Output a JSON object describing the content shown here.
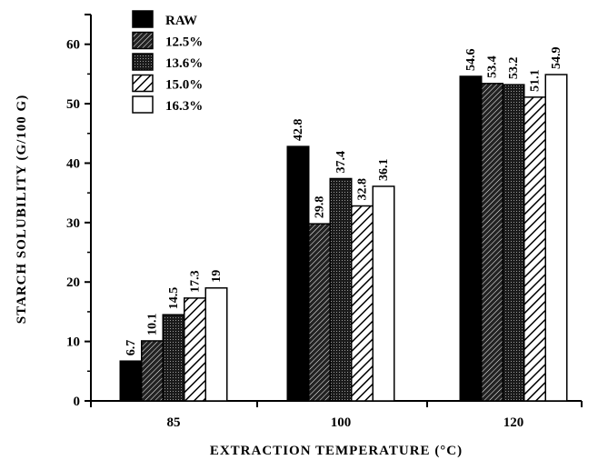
{
  "chart_data": {
    "type": "bar",
    "title": "",
    "xlabel": "EXTRACTION TEMPERATURE (°C)",
    "ylabel": "STARCH SOLUBILITY (G/100 G)",
    "categories": [
      "85",
      "100",
      "120"
    ],
    "ylim": [
      0,
      65
    ],
    "yticks": [
      0,
      10,
      20,
      30,
      40,
      50,
      60
    ],
    "grid": false,
    "legend_position": "top-left",
    "series": [
      {
        "name": "RAW",
        "pattern": "solid",
        "values": [
          6.7,
          42.8,
          54.6
        ],
        "labels": [
          "6.7",
          "42.8",
          "54.6"
        ]
      },
      {
        "name": "12.5%",
        "pattern": "dense-hatch",
        "values": [
          10.1,
          29.8,
          53.4
        ],
        "labels": [
          "10.1",
          "29.8",
          "53.4"
        ]
      },
      {
        "name": "13.6%",
        "pattern": "dots",
        "values": [
          14.5,
          37.4,
          53.2
        ],
        "labels": [
          "14.5",
          "37.4",
          "53.2"
        ]
      },
      {
        "name": "15.0%",
        "pattern": "hatch",
        "values": [
          17.3,
          32.8,
          51.1
        ],
        "labels": [
          "17.3",
          "32.8",
          "51.1"
        ]
      },
      {
        "name": "16.3%",
        "pattern": "empty",
        "values": [
          19,
          36.1,
          54.9
        ],
        "labels": [
          "19",
          "36.1",
          "54.9"
        ]
      }
    ]
  }
}
